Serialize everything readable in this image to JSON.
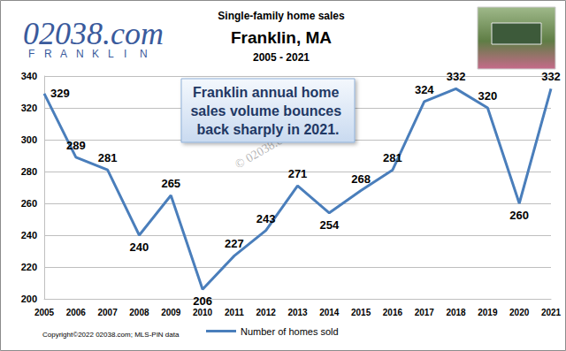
{
  "chart_data": {
    "type": "line",
    "title": "Single-family home sales",
    "subtitle": "Franklin, MA",
    "annotations": [
      "2005 - 2021",
      "Franklin annual home sales volume bounces back sharply in 2021.",
      "© 02038.com",
      "02038.com",
      "FRANKLIN",
      "Copyright©2022 02038.com; MLS-PIN data"
    ],
    "categories": [
      "2005",
      "2006",
      "2007",
      "2008",
      "2009",
      "2010",
      "2011",
      "2012",
      "2013",
      "2014",
      "2015",
      "2016",
      "2017",
      "2018",
      "2019",
      "2020",
      "2021"
    ],
    "series": [
      {
        "name": "Number of homes sold",
        "color": "#4a7ebb",
        "marker": "none",
        "values": [
          329,
          289,
          281,
          240,
          265,
          206,
          227,
          243,
          271,
          254,
          268,
          281,
          324,
          332,
          320,
          260,
          332
        ]
      }
    ],
    "ylim": [
      200,
      340
    ],
    "yticks": [
      200,
      220,
      240,
      260,
      280,
      300,
      320,
      340
    ],
    "grid": true,
    "legend": "bottom",
    "data_labels": true
  }
}
